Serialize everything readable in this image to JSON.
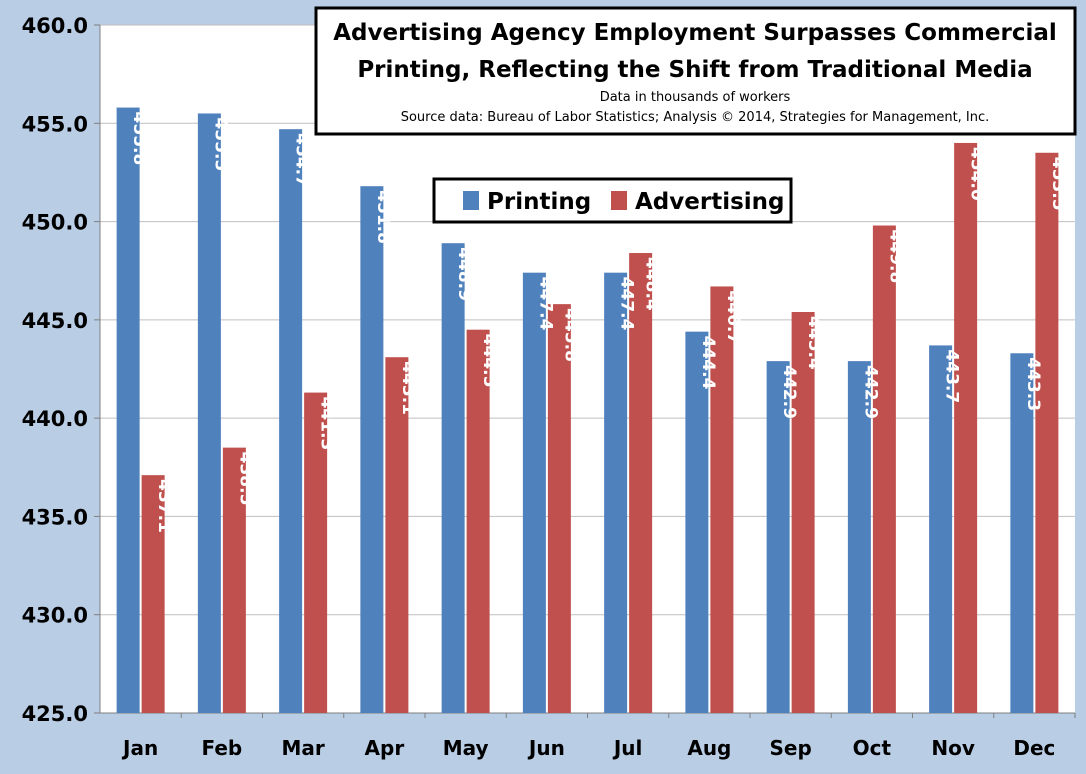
{
  "colors": {
    "background": "#b9cde5",
    "plot_area": "#ffffff",
    "printing": "#4f81bd",
    "advertising": "#c0504d",
    "gridline": "#bfbfbf"
  },
  "chart_data": {
    "type": "bar",
    "title_lines": [
      "Advertising Agency Employment Surpasses Commercial",
      "Printing, Reflecting the Shift from Traditional Media"
    ],
    "subtitle_lines": [
      "Data in thousands of workers",
      "Source data: Bureau of Labor Statistics; Analysis © 2014, Strategies for Management, Inc."
    ],
    "categories": [
      "Jan",
      "Feb",
      "Mar",
      "Apr",
      "May",
      "Jun",
      "Jul",
      "Aug",
      "Sep",
      "Oct",
      "Nov",
      "Dec"
    ],
    "series": [
      {
        "name": "Printing",
        "values": [
          455.8,
          455.5,
          454.7,
          451.8,
          448.9,
          447.4,
          447.4,
          444.4,
          442.9,
          442.9,
          443.7,
          443.3
        ]
      },
      {
        "name": "Advertising",
        "values": [
          437.1,
          438.5,
          441.3,
          443.1,
          444.5,
          445.8,
          448.4,
          446.7,
          445.4,
          449.8,
          454.0,
          453.5
        ]
      }
    ],
    "ylim": [
      425,
      460
    ],
    "yticks": [
      "425.0",
      "430.0",
      "435.0",
      "440.0",
      "445.0",
      "450.0",
      "455.0",
      "460.0"
    ],
    "grid": true,
    "legend_position": "top-center",
    "data_labels": "inside-end, rotated"
  }
}
